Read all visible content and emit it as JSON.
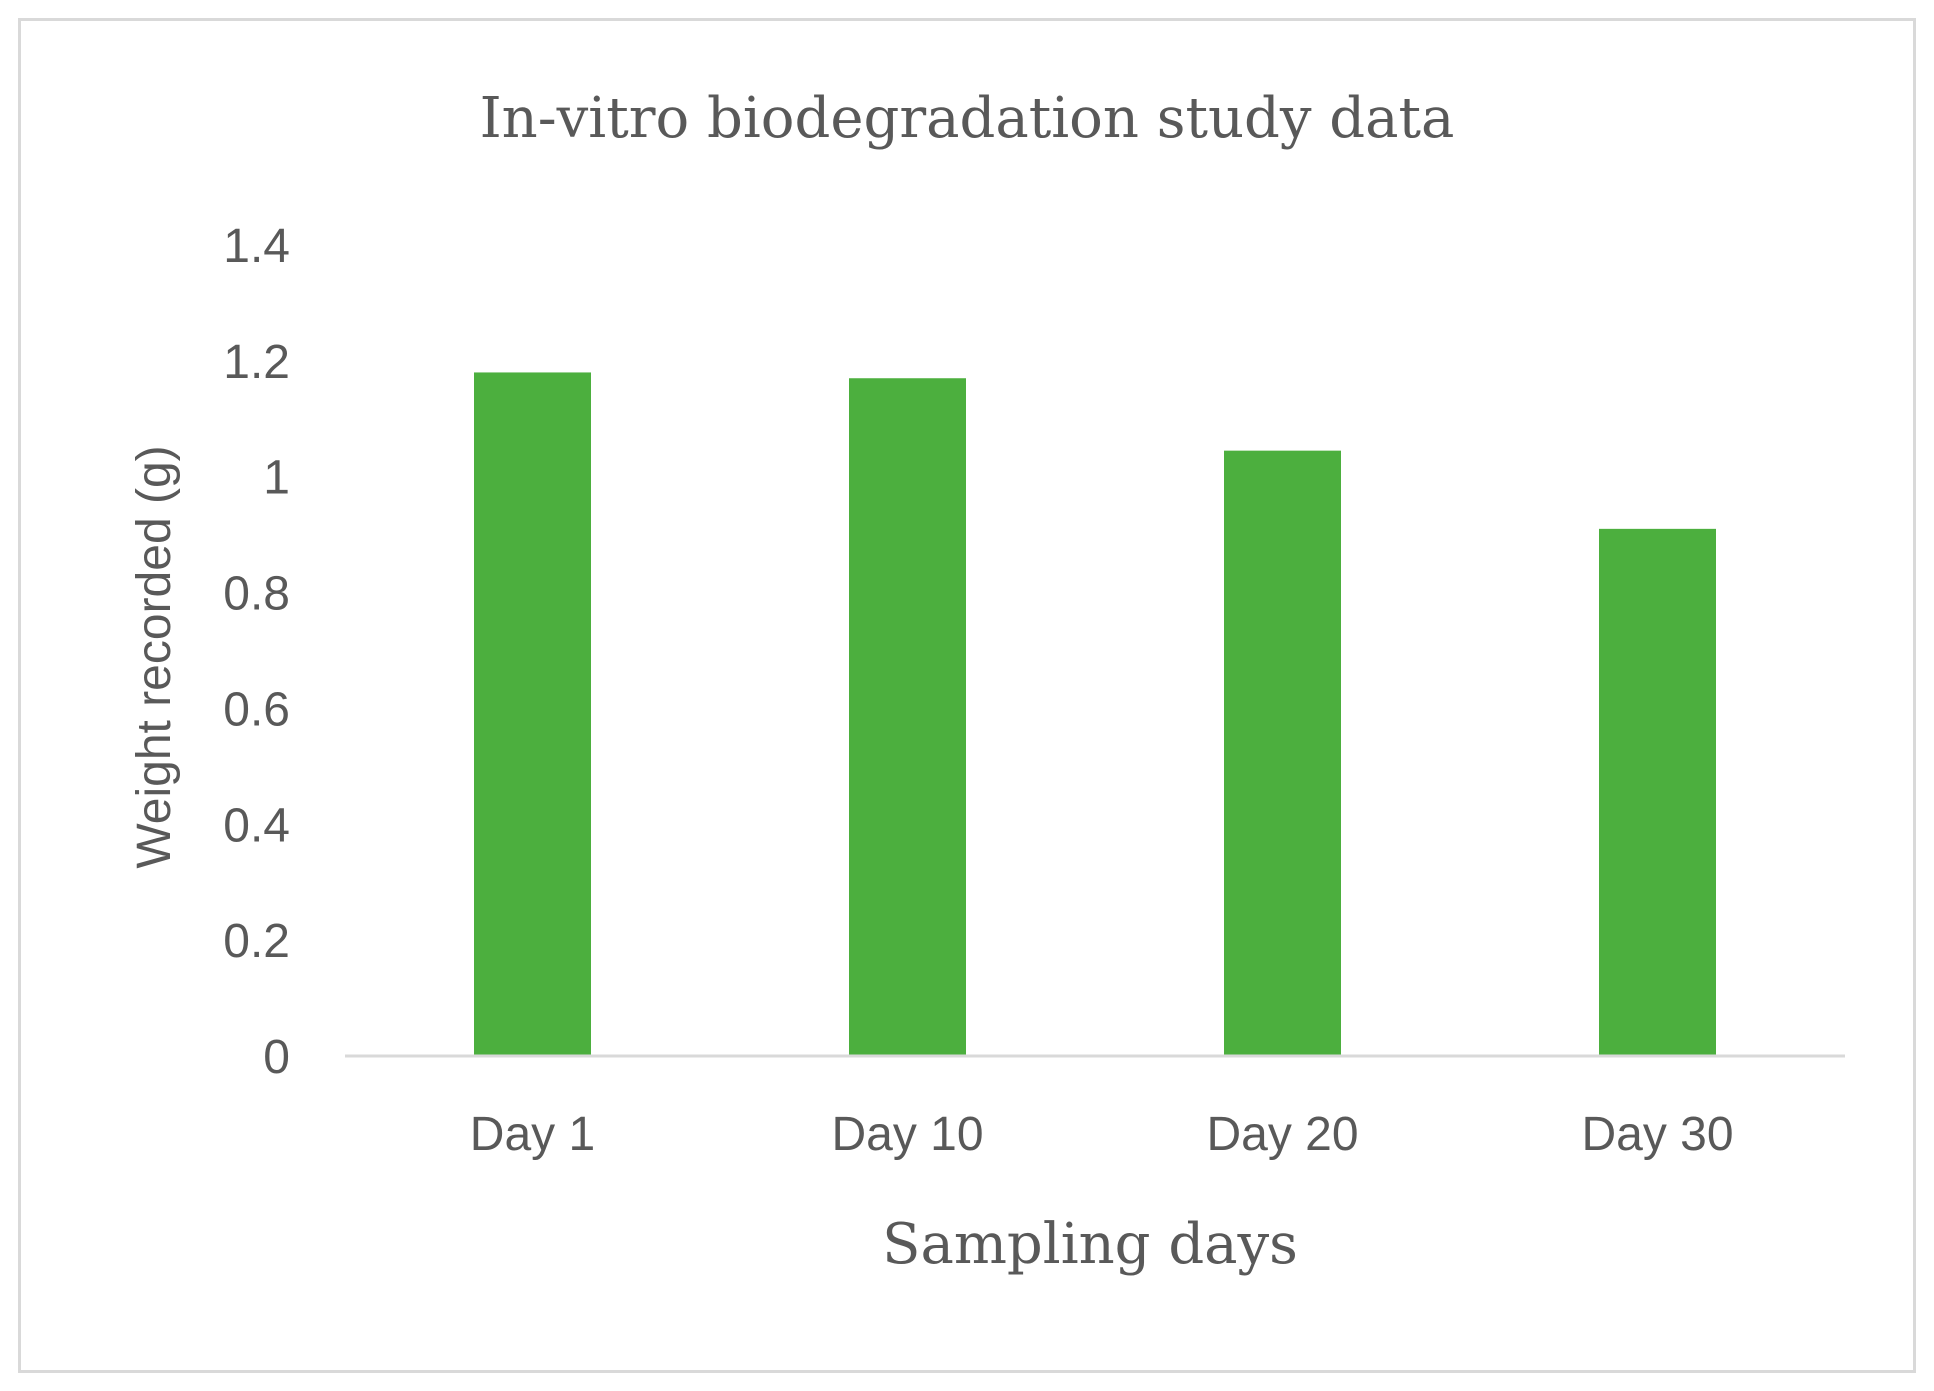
{
  "chart_data": {
    "type": "bar",
    "title": "In-vitro biodegradation study data",
    "xlabel": "Sampling days",
    "ylabel": "Weight recorded (g)",
    "categories": [
      "Day 1",
      "Day 10",
      "Day 20",
      "Day 30"
    ],
    "values": [
      1.18,
      1.17,
      1.045,
      0.91
    ],
    "ylim": [
      0,
      1.4
    ],
    "yticks": [
      "0",
      "0.2",
      "0.4",
      "0.6",
      "0.8",
      "1",
      "1.2",
      "1.4"
    ],
    "grid": false,
    "legend": "none",
    "colors": {
      "bar": "#4caf3e",
      "text": "#595959",
      "axis": "#d9d9d9"
    }
  }
}
